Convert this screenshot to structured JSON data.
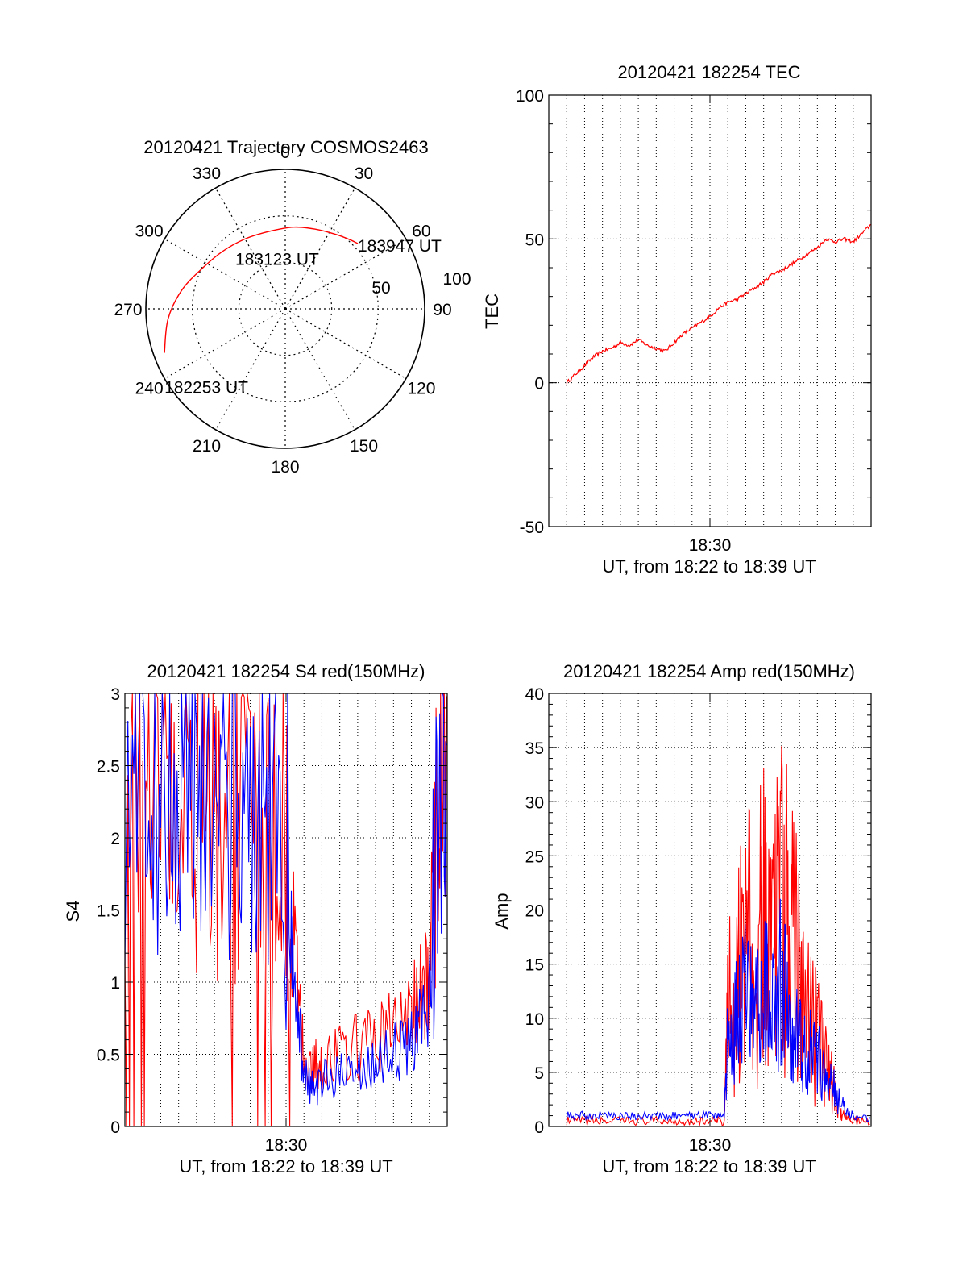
{
  "colors": {
    "red": "#ff0000",
    "blue": "#0000ff",
    "axis": "#000000",
    "grid": "#000000",
    "background": "#ffffff"
  },
  "chart_data": [
    {
      "type": "polar",
      "title": "20120421 Trajectory COSMOS2463",
      "angle_labels": [
        "0",
        "30",
        "60",
        "90",
        "120",
        "150",
        "180",
        "210",
        "240",
        "270",
        "300",
        "330"
      ],
      "radius_labels": [
        "50",
        "100"
      ],
      "elevation_rings": [
        60,
        30,
        0
      ],
      "series": [
        {
          "color": "red",
          "points": [
            {
              "azimuth": 250,
              "elevation": 7
            },
            {
              "azimuth": 265,
              "elevation": 14
            },
            {
              "azimuth": 280,
              "elevation": 22
            },
            {
              "azimuth": 295,
              "elevation": 30
            },
            {
              "azimuth": 312,
              "elevation": 35
            },
            {
              "azimuth": 330,
              "elevation": 38
            },
            {
              "azimuth": 348,
              "elevation": 39
            },
            {
              "azimuth": 6,
              "elevation": 37
            },
            {
              "azimuth": 21,
              "elevation": 35
            },
            {
              "azimuth": 34,
              "elevation": 32
            },
            {
              "azimuth": 43,
              "elevation": 29
            },
            {
              "azimuth": 48,
              "elevation": 27
            }
          ]
        }
      ],
      "annotations": [
        {
          "text": "183947 UT",
          "azimuth": 48,
          "elevation": 27
        },
        {
          "text": "183123 UT",
          "azimuth": 350,
          "elevation": 39
        },
        {
          "text": "182253 UT",
          "azimuth": 250,
          "elevation": 7
        }
      ]
    },
    {
      "type": "line",
      "title": "20120421 182254 TEC",
      "ylabel": "TEC",
      "xlabel": "UT, from 18:22 to 18:39 UT",
      "ylim": [
        -50,
        100
      ],
      "yticks": [
        "-50",
        "0",
        "50",
        "100"
      ],
      "xticks": [
        "18:30"
      ],
      "series": [
        {
          "color": "red",
          "x": [
            0.0,
            0.5,
            1.0,
            1.5,
            2.0,
            2.5,
            3.0,
            3.5,
            4.0,
            4.5,
            5.0,
            5.5,
            6.0,
            6.5,
            7.0,
            7.5,
            8.0,
            8.5,
            9.0,
            9.5,
            10.0,
            10.5,
            11.0,
            11.5,
            12.0,
            12.5,
            13.0,
            13.5,
            14.0,
            14.5,
            15.0,
            15.5,
            16.0,
            16.5,
            17.0
          ],
          "y": [
            0,
            3,
            6,
            9,
            11,
            12,
            14,
            13,
            15,
            13,
            12,
            11,
            14,
            17,
            19,
            21,
            23,
            26,
            28,
            29,
            31,
            33,
            35,
            38,
            39,
            41,
            43,
            45,
            47,
            50,
            49,
            50,
            49,
            52,
            55
          ]
        }
      ]
    },
    {
      "type": "line",
      "title": "20120421 182254 S4 red(150MHz)",
      "ylabel": "S4",
      "xlabel": "UT, from 18:22 to 18:39 UT",
      "ylim": [
        0,
        3
      ],
      "yticks": [
        "0",
        "0.5",
        "1",
        "1.5",
        "2",
        "2.5",
        "3"
      ],
      "xticks": [
        "18:30"
      ],
      "series": [
        {
          "color": "red",
          "x": [
            -1.0,
            0.0,
            1.0,
            2.0,
            3.0,
            4.0,
            5.0,
            6.0,
            7.0,
            8.0,
            8.5,
            9.0,
            9.5,
            10.0,
            11.0,
            12.0,
            13.0,
            14.0,
            15.0,
            15.5,
            16.0,
            16.5,
            17.0
          ],
          "y": [
            2.3,
            2.4,
            2.3,
            2.2,
            2.1,
            2.0,
            2.1,
            2.0,
            1.9,
            1.8,
            1.2,
            0.45,
            0.4,
            0.45,
            0.5,
            0.55,
            0.6,
            0.7,
            0.8,
            0.9,
            1.0,
            2.5,
            2.6
          ]
        },
        {
          "color": "blue",
          "x": [
            -1.0,
            0.0,
            1.0,
            2.0,
            3.0,
            4.0,
            5.0,
            6.0,
            7.0,
            8.0,
            8.5,
            9.0,
            9.5,
            10.0,
            11.0,
            12.0,
            13.0,
            14.0,
            15.0,
            15.5,
            16.0,
            16.5,
            17.0
          ],
          "y": [
            2.2,
            2.3,
            2.2,
            2.2,
            2.1,
            2.0,
            2.0,
            1.9,
            1.9,
            1.7,
            1.0,
            0.35,
            0.3,
            0.3,
            0.35,
            0.4,
            0.45,
            0.5,
            0.6,
            0.7,
            0.9,
            2.4,
            2.5
          ]
        }
      ]
    },
    {
      "type": "line",
      "title": "20120421 182254 Amp red(150MHz)",
      "ylabel": "Amp",
      "xlabel": "UT, from 18:22 to 18:39 UT",
      "ylim": [
        0,
        40
      ],
      "yticks": [
        "0",
        "5",
        "10",
        "15",
        "20",
        "25",
        "30",
        "35",
        "40"
      ],
      "xticks": [
        "18:30"
      ],
      "series": [
        {
          "color": "red",
          "x": [
            0,
            1,
            2,
            3,
            4,
            5,
            6,
            7,
            8,
            8.8,
            9.0,
            9.5,
            10.0,
            10.5,
            11.0,
            11.5,
            12.0,
            12.5,
            13.0,
            13.5,
            14.0,
            14.5,
            15.0,
            15.5,
            16.0,
            17.0
          ],
          "y": [
            0.5,
            0.5,
            0.5,
            0.5,
            0.5,
            0.5,
            0.5,
            0.5,
            0.5,
            0.5,
            10,
            15,
            18,
            16,
            20,
            15,
            22,
            18,
            14,
            10,
            8,
            5,
            3,
            1,
            0.5,
            0.5
          ]
        },
        {
          "color": "blue",
          "x": [
            0,
            1,
            2,
            3,
            4,
            5,
            6,
            7,
            8,
            8.8,
            9.0,
            9.5,
            10.0,
            10.5,
            11.0,
            11.5,
            12.0,
            12.5,
            13.0,
            13.5,
            14.0,
            14.5,
            15.0,
            15.5,
            16.0,
            17.0
          ],
          "y": [
            1.0,
            1.0,
            1.0,
            1.0,
            1.0,
            1.0,
            1.0,
            1.0,
            1.0,
            1.0,
            8,
            10,
            12,
            11,
            13,
            10,
            14,
            9,
            8,
            7,
            6,
            5,
            3,
            1.5,
            1.0,
            0.8
          ]
        }
      ]
    }
  ]
}
